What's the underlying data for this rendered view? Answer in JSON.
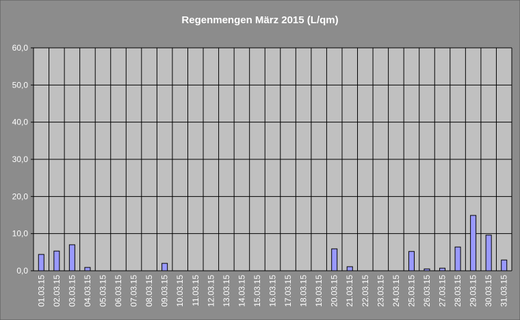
{
  "chart_data": {
    "type": "bar",
    "title": "Regenmengen März 2015 (L/qm)",
    "categories": [
      "01.03.15",
      "02.03.15",
      "03.03.15",
      "04.03.15",
      "05.03.15",
      "06.03.15",
      "07.03.15",
      "08.03.15",
      "09.03.15",
      "10.03.15",
      "11.03.15",
      "12.03.15",
      "13.03.15",
      "14.03.15",
      "15.03.15",
      "16.03.15",
      "17.03.15",
      "18.03.15",
      "19.03.15",
      "20.03.15",
      "21.03.15",
      "22.03.15",
      "23.03.15",
      "24.03.15",
      "25.03.15",
      "26.03.15",
      "27.03.15",
      "28.03.15",
      "29.03.15",
      "30.03.15",
      "31.03.15"
    ],
    "values": [
      4.4,
      5.3,
      7.0,
      0.9,
      0,
      0,
      0,
      0,
      2.0,
      0,
      0,
      0,
      0,
      0,
      0,
      0,
      0,
      0,
      0,
      5.9,
      1.1,
      0,
      0,
      0,
      5.2,
      0.5,
      0.7,
      6.4,
      14.9,
      9.6,
      2.9
    ],
    "color": "#9999ff",
    "ylim": [
      0,
      60
    ],
    "yticks": [
      {
        "value": 0,
        "label": "0,0"
      },
      {
        "value": 10,
        "label": "10,0"
      },
      {
        "value": 20,
        "label": "20,0"
      },
      {
        "value": 30,
        "label": "30,0"
      },
      {
        "value": 40,
        "label": "40,0"
      },
      {
        "value": 50,
        "label": "50,0"
      },
      {
        "value": 60,
        "label": "60,0"
      }
    ],
    "grid": true
  }
}
